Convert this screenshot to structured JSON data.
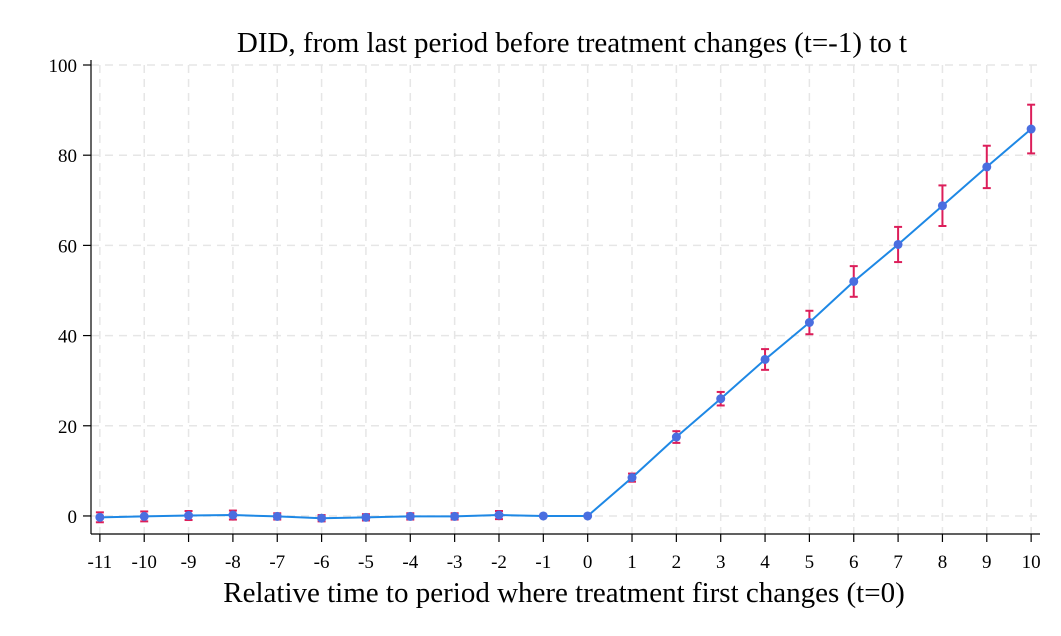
{
  "chart_data": {
    "type": "line",
    "title": "DID, from last period before treatment changes (t=-1) to t",
    "xlabel": "Relative time to period where treatment first changes (t=0)",
    "ylabel": "",
    "x": [
      -11,
      -10,
      -9,
      -8,
      -7,
      -6,
      -5,
      -4,
      -3,
      -2,
      -1,
      0,
      1,
      2,
      3,
      4,
      5,
      6,
      7,
      8,
      9,
      10
    ],
    "y": [
      -0.3,
      -0.1,
      0.1,
      0.2,
      -0.1,
      -0.5,
      -0.3,
      -0.1,
      -0.1,
      0.2,
      0,
      0,
      8.5,
      17.5,
      26,
      34.7,
      42.9,
      52,
      60.2,
      68.8,
      77.4,
      85.8
    ],
    "ci_low": [
      -1.4,
      -1.2,
      -0.9,
      -0.8,
      -0.8,
      -1.2,
      -1.0,
      -0.8,
      -0.8,
      -0.7,
      0,
      0,
      7.6,
      16.2,
      24.5,
      32.4,
      40.3,
      48.6,
      56.3,
      64.3,
      72.7,
      80.4
    ],
    "ci_high": [
      0.8,
      1.0,
      1.1,
      1.2,
      0.6,
      0.2,
      0.4,
      0.6,
      0.6,
      1.1,
      0,
      0,
      9.4,
      18.8,
      27.5,
      37.0,
      45.5,
      55.4,
      64.1,
      73.3,
      82.1,
      91.2
    ],
    "xticks": [
      "-11",
      "-10",
      "-9",
      "-8",
      "-7",
      "-6",
      "-5",
      "-4",
      "-3",
      "-2",
      "-1",
      "0",
      "1",
      "2",
      "3",
      "4",
      "5",
      "6",
      "7",
      "8",
      "9",
      "10"
    ],
    "yticks": [
      "0",
      "20",
      "40",
      "60",
      "80",
      "100"
    ],
    "ylim": [
      -4,
      100
    ],
    "xlim": [
      -11.2,
      10.2
    ],
    "grid": true,
    "colors": {
      "line": "#1e88e5",
      "marker": "#4a6ee0",
      "ci": "#dc1e5a"
    }
  }
}
